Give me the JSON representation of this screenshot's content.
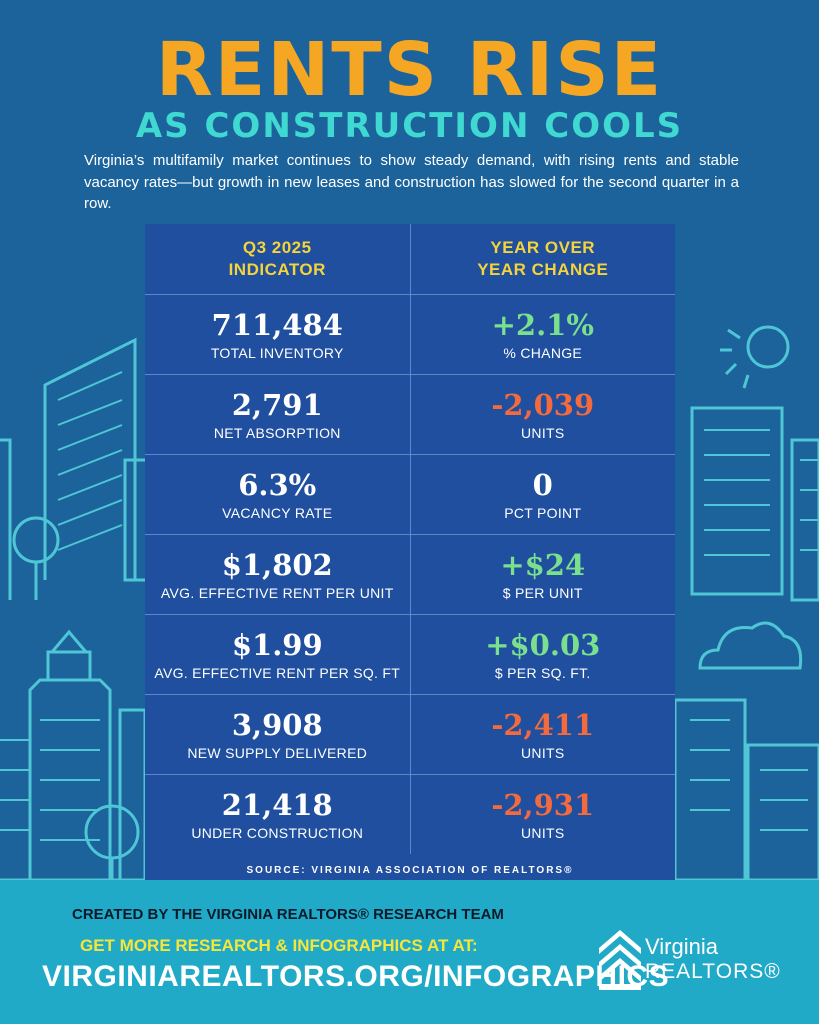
{
  "title": {
    "main": "RENTS RISE",
    "sub": "AS CONSTRUCTION COOLS"
  },
  "intro": "Virginia’s multifamily market continues to show steady demand, with rising rents and stable vacancy rates—but growth in new leases and construction has slowed for the second quarter in a row.",
  "table": {
    "headers": {
      "left_1": "Q3 2025",
      "left_2": "INDICATOR",
      "right_1": "YEAR OVER",
      "right_2": "YEAR CHANGE"
    },
    "rows": [
      {
        "value": "711,484",
        "label": "TOTAL INVENTORY",
        "change": "+2.1%",
        "change_label": "% CHANGE",
        "trend": "up"
      },
      {
        "value": "2,791",
        "label": "NET ABSORPTION",
        "change": "-2,039",
        "change_label": "UNITS",
        "trend": "down"
      },
      {
        "value": "6.3%",
        "label": "VACANCY RATE",
        "change": "0",
        "change_label": "PCT POINT",
        "trend": "neutral"
      },
      {
        "value": "$1,802",
        "label": "AVG. EFFECTIVE RENT PER UNIT",
        "change": "+$24",
        "change_label": "$ PER UNIT",
        "trend": "up"
      },
      {
        "value": "$1.99",
        "label": "AVG. EFFECTIVE RENT PER SQ. FT",
        "change": "+$0.03",
        "change_label": "$ PER SQ. FT.",
        "trend": "up"
      },
      {
        "value": "3,908",
        "label": "NEW SUPPLY DELIVERED",
        "change": "-2,411",
        "change_label": "UNITS",
        "trend": "down"
      },
      {
        "value": "21,418",
        "label": "UNDER CONSTRUCTION",
        "change": "-2,931",
        "change_label": "UNITS",
        "trend": "down"
      }
    ],
    "source": "SOURCE: VIRGINIA ASSOCIATION OF REALTORS®"
  },
  "footer": {
    "created_by": "CREATED BY THE VIRGINIA REALTORS® RESEARCH TEAM",
    "get_more": "GET MORE RESEARCH & INFOGRAPHICS AT AT:",
    "url": "VIRGINIAREALTORS.ORG/INFOGRAPHICS"
  },
  "logo": {
    "line1": "Virginia",
    "line2": "REALTORS®"
  },
  "colors": {
    "background": "#1c639b",
    "table": "#1f4f9e",
    "title_orange": "#f5a623",
    "subtitle_teal": "#3fd9d2",
    "header_yellow": "#f5d33a",
    "positive_green": "#7be08d",
    "negative_orange": "#f26a3d",
    "footer_teal": "#20aac7"
  }
}
